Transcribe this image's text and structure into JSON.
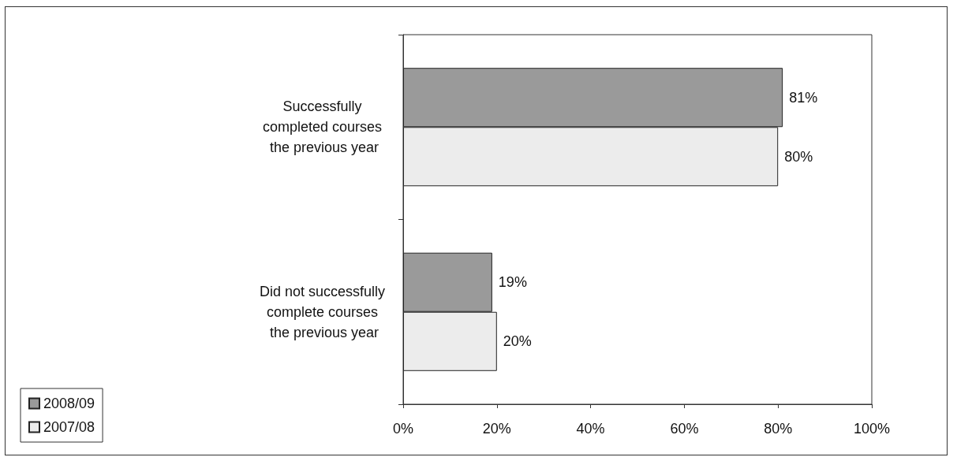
{
  "chart_data": {
    "type": "bar",
    "orientation": "horizontal",
    "categories": [
      "Successfully completed courses the previous year",
      "Did not successfully complete courses the previous year"
    ],
    "series": [
      {
        "name": "2008/09",
        "color": "#9a9a9a",
        "values": [
          81,
          19
        ],
        "value_labels": [
          "81%",
          "19%"
        ]
      },
      {
        "name": "2007/08",
        "color": "#ececec",
        "values": [
          80,
          20
        ],
        "value_labels": [
          "80%",
          "20%"
        ]
      }
    ],
    "xlim": [
      0,
      100
    ],
    "xticks": [
      {
        "value": 0,
        "label": "0%"
      },
      {
        "value": 20,
        "label": "20%"
      },
      {
        "value": 40,
        "label": "40%"
      },
      {
        "value": 60,
        "label": "60%"
      },
      {
        "value": 80,
        "label": "80%"
      },
      {
        "value": 100,
        "label": "100%"
      }
    ],
    "grid": false,
    "legend": "bottom left"
  }
}
